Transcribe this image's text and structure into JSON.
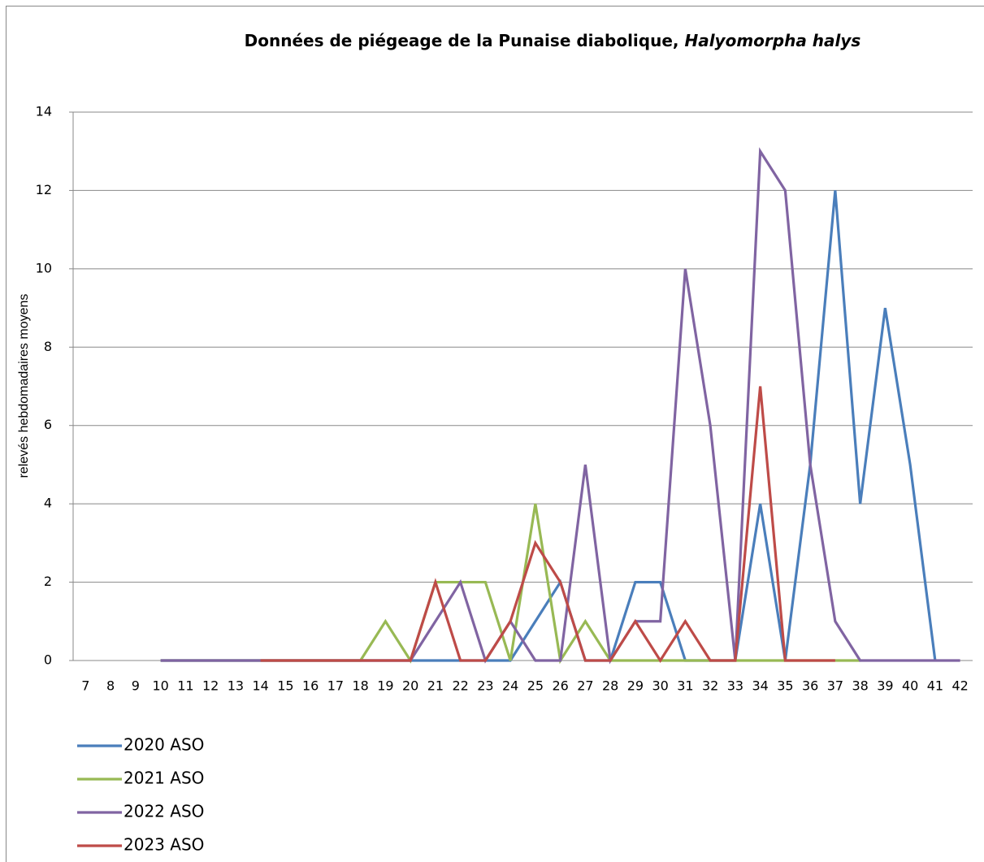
{
  "chart_data": {
    "type": "line",
    "title": "Données de piégeage de la Punaise diabolique,",
    "title_italic": "Halyomorpha halys",
    "y_label": "relevés hebdomadaires moyens",
    "categories": [
      "7",
      "8",
      "9",
      "10",
      "11",
      "12",
      "13",
      "14",
      "15",
      "16",
      "17",
      "18",
      "19",
      "20",
      "21",
      "22",
      "23",
      "24",
      "25",
      "26",
      "27",
      "28",
      "29",
      "30",
      "31",
      "32",
      "33",
      "34",
      "35",
      "36",
      "37",
      "38",
      "39",
      "40",
      "41",
      "42"
    ],
    "ylim": [
      0,
      14
    ],
    "yticks": [
      0,
      2,
      4,
      6,
      8,
      10,
      12,
      14
    ],
    "grid": true,
    "legend": "bottom-left",
    "series": [
      {
        "name": "2020 ASO",
        "color": "#4a7ebb",
        "values": [
          null,
          null,
          null,
          0,
          0,
          0,
          0,
          0,
          0,
          0,
          0,
          0,
          0,
          0,
          0,
          0,
          0,
          0,
          1,
          2,
          0,
          0,
          2,
          2,
          0,
          0,
          0,
          4,
          0,
          5,
          12,
          4,
          9,
          5,
          0,
          null
        ]
      },
      {
        "name": "2021 ASO",
        "color": "#98b954",
        "values": [
          null,
          null,
          null,
          0,
          0,
          0,
          0,
          0,
          0,
          0,
          0,
          0,
          1,
          0,
          2,
          2,
          2,
          0,
          4,
          0,
          1,
          0,
          0,
          0,
          0,
          0,
          0,
          0,
          0,
          0,
          0,
          0,
          null,
          null,
          null,
          null
        ]
      },
      {
        "name": "2022 ASO",
        "color": "#8064a2",
        "values": [
          null,
          null,
          null,
          0,
          0,
          0,
          0,
          0,
          0,
          0,
          0,
          0,
          0,
          0,
          1,
          2,
          0,
          1,
          0,
          0,
          5,
          0,
          1,
          1,
          10,
          6,
          0,
          13,
          12,
          5,
          1,
          0,
          0,
          0,
          0,
          0
        ]
      },
      {
        "name": "2023 ASO",
        "color": "#be4b48",
        "values": [
          null,
          null,
          null,
          null,
          null,
          null,
          null,
          0,
          0,
          0,
          0,
          0,
          0,
          0,
          2,
          0,
          0,
          1,
          3,
          2,
          0,
          0,
          1,
          0,
          1,
          0,
          0,
          7,
          0,
          0,
          0,
          null,
          null,
          null,
          null,
          null
        ]
      }
    ]
  }
}
